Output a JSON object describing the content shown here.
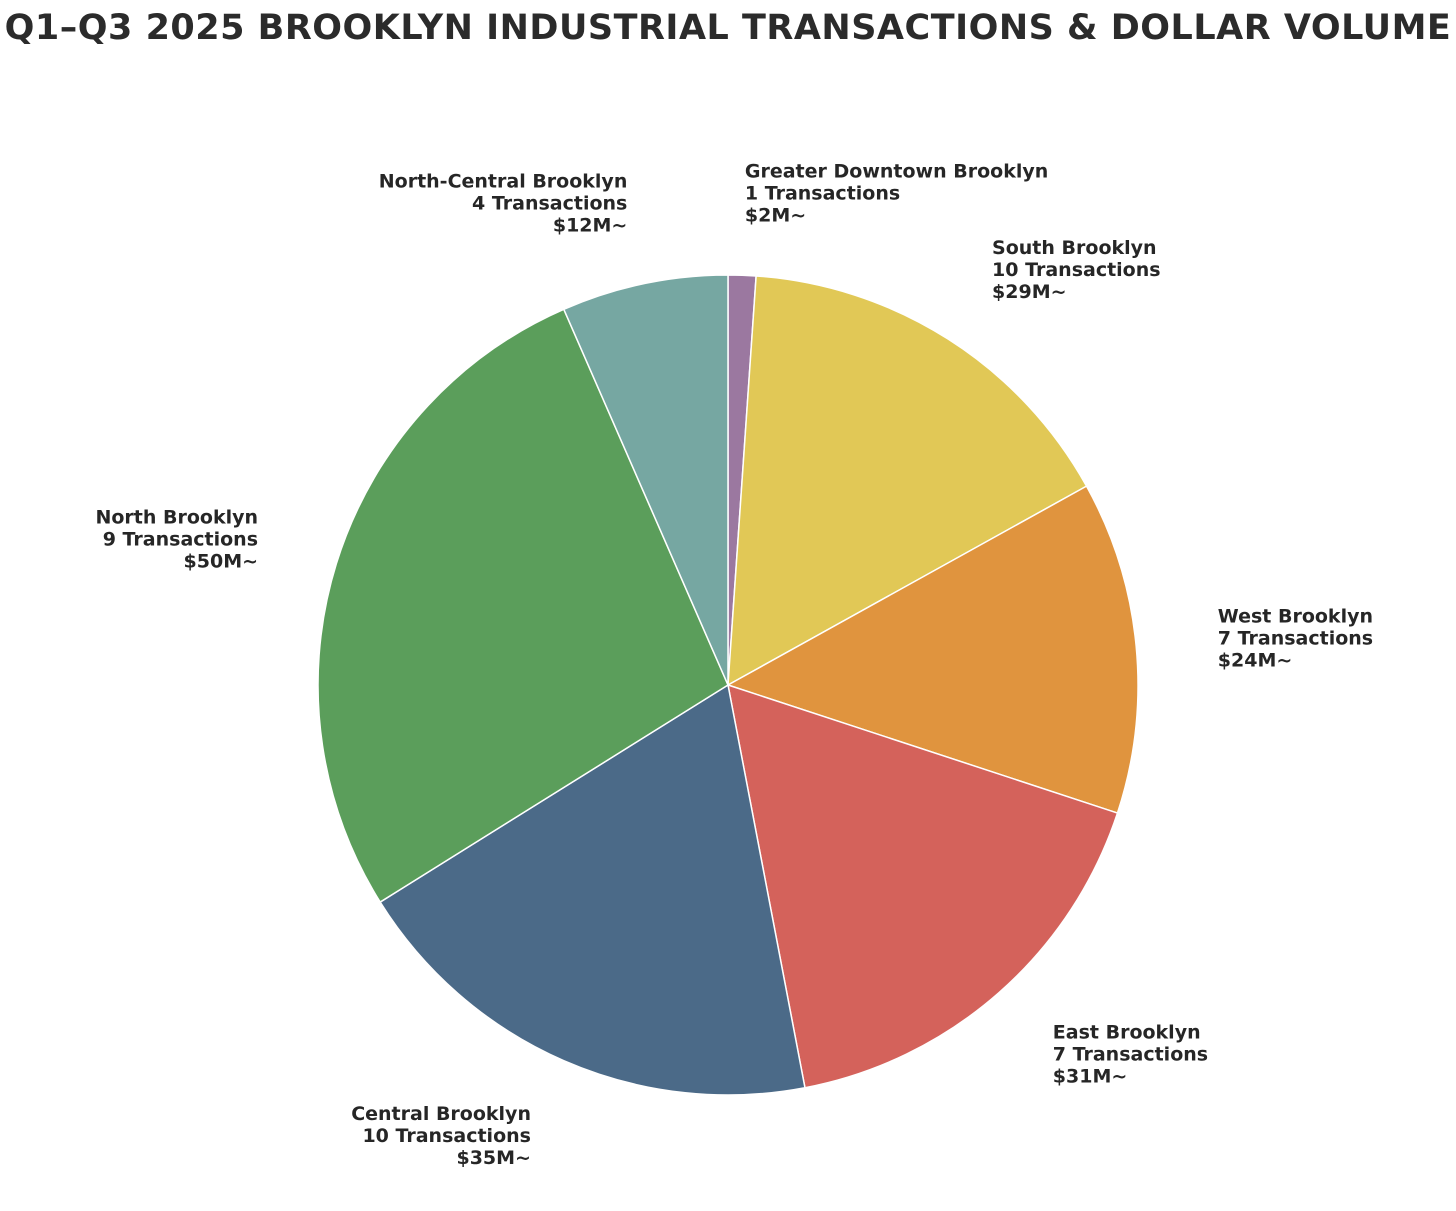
{
  "chart_data": {
    "type": "pie",
    "title": "Q1–Q3 2025 BROOKLYN INDUSTRIAL TRANSACTIONS & DOLLAR VOLUME",
    "slices": [
      {
        "name": "Greater Downtown Brooklyn",
        "transactions": 1,
        "transactions_label": "1 Transactions",
        "value": 2,
        "value_label": "$2M~",
        "color": "#9b78a0"
      },
      {
        "name": "South Brooklyn",
        "transactions": 10,
        "transactions_label": "10 Transactions",
        "value": 29,
        "value_label": "$29M~",
        "color": "#e1c856"
      },
      {
        "name": "West Brooklyn",
        "transactions": 7,
        "transactions_label": "7 Transactions",
        "value": 24,
        "value_label": "$24M~",
        "color": "#e0943e"
      },
      {
        "name": "East Brooklyn",
        "transactions": 7,
        "transactions_label": "7 Transactions",
        "value": 31,
        "value_label": "$31M~",
        "color": "#d4625b"
      },
      {
        "name": "Central Brooklyn",
        "transactions": 10,
        "transactions_label": "10 Transactions",
        "value": 35,
        "value_label": "$35M~",
        "color": "#4b6a88"
      },
      {
        "name": "North Brooklyn",
        "transactions": 9,
        "transactions_label": "9 Transactions",
        "value": 50,
        "value_label": "$50M~",
        "color": "#5b9e5b"
      },
      {
        "name": "North-Central Brooklyn",
        "transactions": 4,
        "transactions_label": "4 Transactions",
        "value": 12,
        "value_label": "$12M~",
        "color": "#76a7a2"
      }
    ]
  }
}
